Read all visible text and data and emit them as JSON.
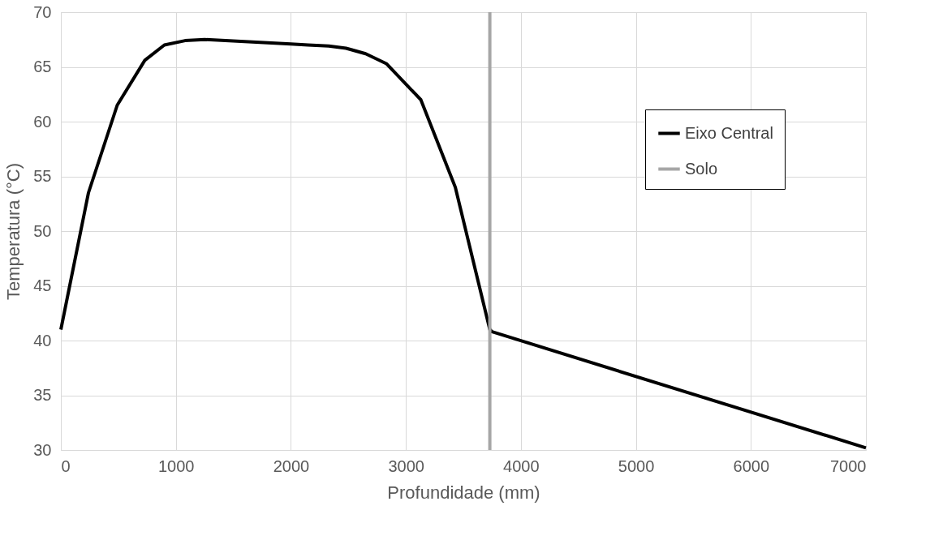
{
  "chart_data": {
    "type": "line",
    "xlabel": "Profundidade (mm)",
    "ylabel": "Temperatura (°C)",
    "xlim": [
      0,
      7000
    ],
    "xticks": [
      0,
      1000,
      2000,
      3000,
      4000,
      5000,
      6000,
      7000
    ],
    "ylim": [
      30,
      70
    ],
    "yticks": [
      30,
      35,
      40,
      45,
      50,
      55,
      60,
      65,
      70
    ],
    "grid": true,
    "legend": "right",
    "line_style": "solid",
    "marker": "none",
    "series": [
      {
        "name": "Eixo Central",
        "color": "#000000",
        "x": [
          0,
          240,
          490,
          730,
          900,
          1080,
          1250,
          2000,
          2150,
          2330,
          2480,
          2650,
          2830,
          3130,
          3430,
          3730,
          3750,
          7000
        ],
        "values": [
          41,
          53.5,
          61.5,
          65.6,
          67,
          67.4,
          67.5,
          67.1,
          67,
          66.9,
          66.7,
          66.2,
          65.3,
          62,
          54,
          41,
          40.8,
          30.2
        ]
      },
      {
        "name": "Solo",
        "color": "#a6a6a6",
        "x": [
          3730,
          3730
        ],
        "values": [
          30,
          70
        ]
      }
    ]
  }
}
